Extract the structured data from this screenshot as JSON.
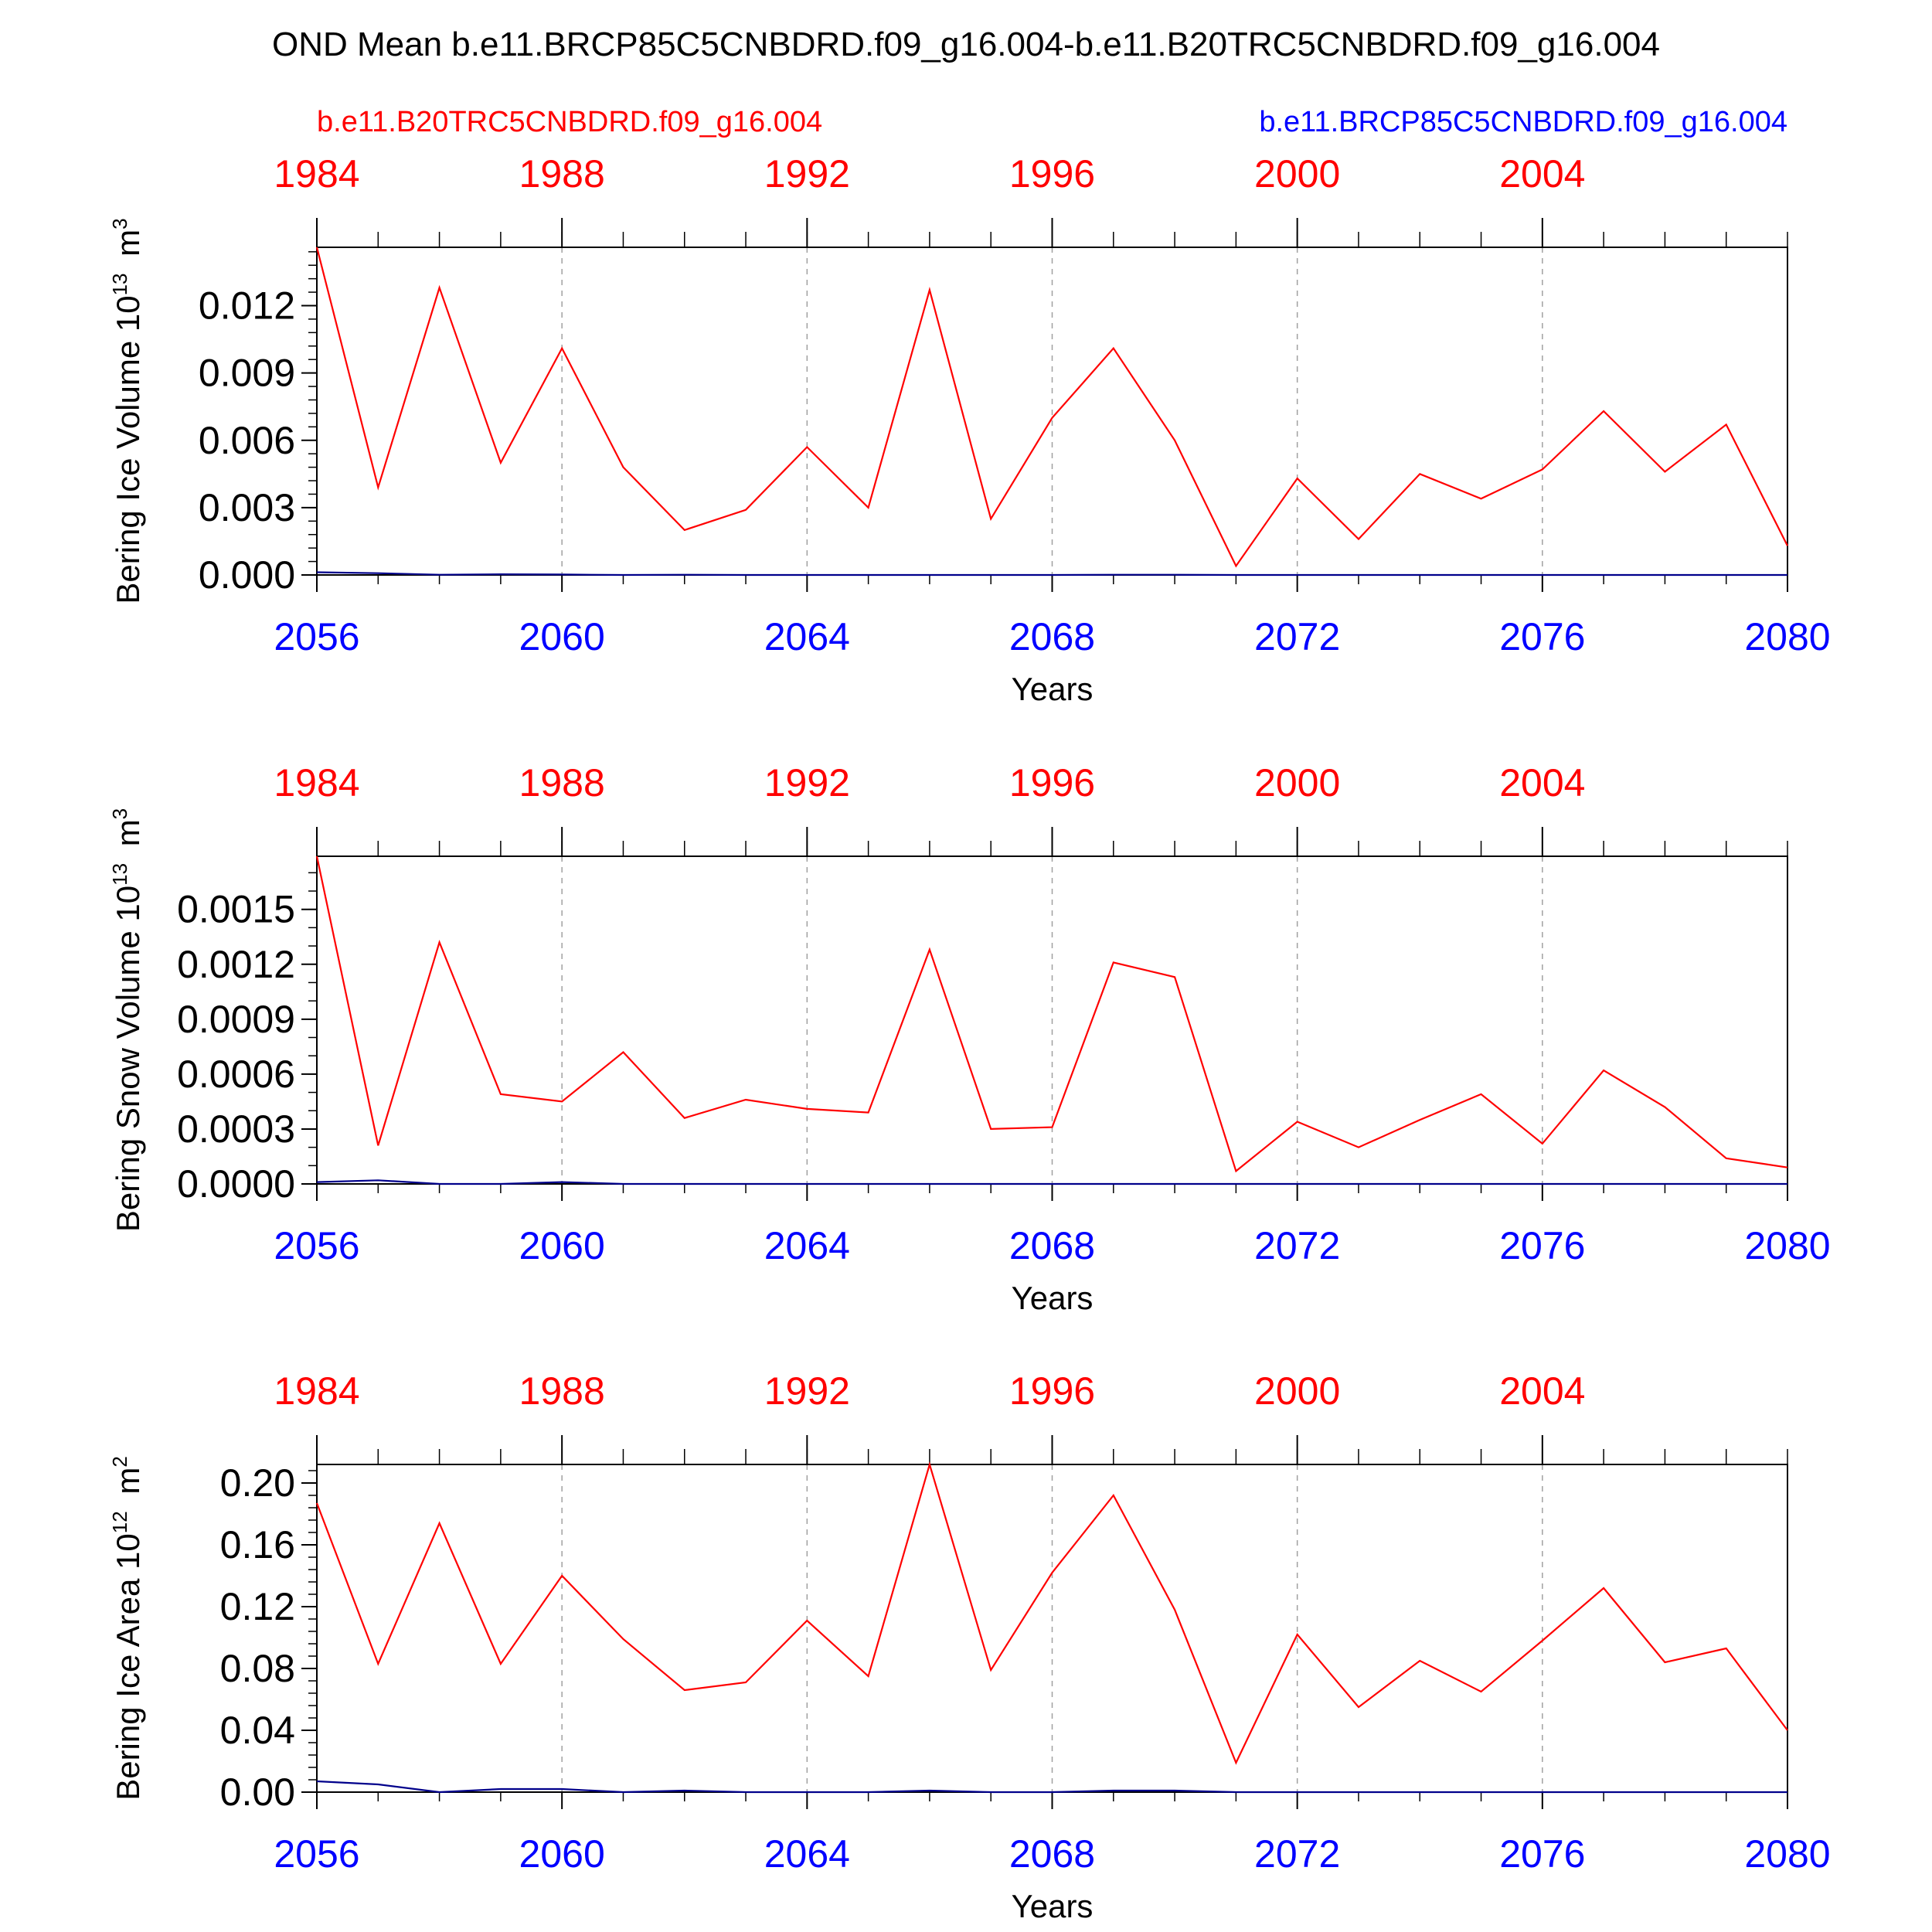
{
  "title": "OND Mean b.e11.BRCP85C5CNBDRD.f09_g16.004-b.e11.B20TRC5CNBDRD.f09_g16.004",
  "legend": {
    "left_label": "b.e11.B20TRC5CNBDRD.f09_g16.004",
    "right_label": "b.e11.BRCP85C5CNBDRD.f09_g16.004"
  },
  "colors": {
    "control": "#ff0000",
    "future": "#0000ff",
    "future_line": "#00008b",
    "axis": "#000000",
    "grid": "#a0a0a0"
  },
  "chart_data": [
    {
      "type": "line",
      "ylabel_main": "Bering Ice Volume 10",
      "ylabel_exp": "13",
      "ylabel_unit": "m",
      "ylabel_unit_exp": "3",
      "xlabel": "Years",
      "xlim": [
        2056,
        2080
      ],
      "ylim": [
        0,
        0.0146
      ],
      "yticks": [
        0,
        0.003,
        0.006,
        0.009,
        0.012
      ],
      "ytick_labels": [
        "0.000",
        "0.003",
        "0.006",
        "0.009",
        "0.012"
      ],
      "yminor_step": 0.0006,
      "x_bottom_ticks": [
        2056,
        2060,
        2064,
        2068,
        2072,
        2076,
        2080
      ],
      "x_top_ticks": [
        1984,
        1988,
        1992,
        1996,
        2000,
        2004
      ],
      "x": [
        2056,
        2057,
        2058,
        2059,
        2060,
        2061,
        2062,
        2063,
        2064,
        2065,
        2066,
        2067,
        2068,
        2069,
        2070,
        2071,
        2072,
        2073,
        2074,
        2075,
        2076,
        2077,
        2078,
        2079,
        2080
      ],
      "series": [
        {
          "name": "b.e11.B20TRC5CNBDRD.f09_g16.004",
          "color_key": "control",
          "values": [
            0.0146,
            0.0039,
            0.0128,
            0.005,
            0.0101,
            0.0048,
            0.002,
            0.0029,
            0.0057,
            0.003,
            0.0127,
            0.0025,
            0.007,
            0.0101,
            0.006,
            0.0004,
            0.0043,
            0.0016,
            0.0045,
            0.0034,
            0.0047,
            0.0073,
            0.0046,
            0.0067,
            0.0013
          ]
        },
        {
          "name": "b.e11.BRCP85C5CNBDRD.f09_g16.004",
          "color_key": "future_line",
          "values": [
            0.00012,
            8e-05,
            1e-05,
            3e-05,
            2e-05,
            0.0,
            1e-05,
            0.0,
            0.0,
            0.0,
            0.0,
            0.0,
            0.0,
            1e-05,
            1e-05,
            0.0,
            0.0,
            0.0,
            0.0,
            0.0,
            0.0,
            0.0,
            0.0,
            0.0,
            0.0
          ]
        }
      ]
    },
    {
      "type": "line",
      "ylabel_main": "Bering Snow Volume 10",
      "ylabel_exp": "13",
      "ylabel_unit": "m",
      "ylabel_unit_exp": "3",
      "xlabel": "Years",
      "xlim": [
        2056,
        2080
      ],
      "ylim": [
        0,
        0.00179
      ],
      "yticks": [
        0,
        0.0003,
        0.0006,
        0.0009,
        0.0012,
        0.0015
      ],
      "ytick_labels": [
        "0.0000",
        "0.0003",
        "0.0006",
        "0.0009",
        "0.0012",
        "0.0015"
      ],
      "yminor_step": 0.0001,
      "x_bottom_ticks": [
        2056,
        2060,
        2064,
        2068,
        2072,
        2076,
        2080
      ],
      "x_top_ticks": [
        1984,
        1988,
        1992,
        1996,
        2000,
        2004
      ],
      "x": [
        2056,
        2057,
        2058,
        2059,
        2060,
        2061,
        2062,
        2063,
        2064,
        2065,
        2066,
        2067,
        2068,
        2069,
        2070,
        2071,
        2072,
        2073,
        2074,
        2075,
        2076,
        2077,
        2078,
        2079,
        2080
      ],
      "series": [
        {
          "name": "b.e11.B20TRC5CNBDRD.f09_g16.004",
          "color_key": "control",
          "values": [
            0.00179,
            0.00021,
            0.00132,
            0.00049,
            0.00045,
            0.00072,
            0.00036,
            0.00046,
            0.00041,
            0.00039,
            0.00128,
            0.0003,
            0.00031,
            0.00121,
            0.00113,
            7e-05,
            0.00034,
            0.0002,
            0.00035,
            0.00049,
            0.00022,
            0.00062,
            0.00042,
            0.00014,
            9e-05
          ]
        },
        {
          "name": "b.e11.BRCP85C5CNBDRD.f09_g16.004",
          "color_key": "future_line",
          "values": [
            1e-05,
            2e-05,
            0.0,
            0.0,
            1e-05,
            0.0,
            0.0,
            0.0,
            0.0,
            0.0,
            0.0,
            0.0,
            0.0,
            0.0,
            0.0,
            0.0,
            0.0,
            0.0,
            0.0,
            0.0,
            0.0,
            0.0,
            0.0,
            0.0,
            0.0
          ]
        }
      ]
    },
    {
      "type": "line",
      "ylabel_main": "Bering Ice Area 10",
      "ylabel_exp": "12",
      "ylabel_unit": "m",
      "ylabel_unit_exp": "2",
      "xlabel": "Years",
      "xlim": [
        2056,
        2080
      ],
      "ylim": [
        0,
        0.212
      ],
      "yticks": [
        0,
        0.04,
        0.08,
        0.12,
        0.16,
        0.2
      ],
      "ytick_labels": [
        "0.00",
        "0.04",
        "0.08",
        "0.12",
        "0.16",
        "0.20"
      ],
      "yminor_step": 0.008,
      "x_bottom_ticks": [
        2056,
        2060,
        2064,
        2068,
        2072,
        2076,
        2080
      ],
      "x_top_ticks": [
        1984,
        1988,
        1992,
        1996,
        2000,
        2004
      ],
      "x": [
        2056,
        2057,
        2058,
        2059,
        2060,
        2061,
        2062,
        2063,
        2064,
        2065,
        2066,
        2067,
        2068,
        2069,
        2070,
        2071,
        2072,
        2073,
        2074,
        2075,
        2076,
        2077,
        2078,
        2079,
        2080
      ],
      "series": [
        {
          "name": "b.e11.B20TRC5CNBDRD.f09_g16.004",
          "color_key": "control",
          "values": [
            0.187,
            0.083,
            0.174,
            0.083,
            0.14,
            0.099,
            0.066,
            0.071,
            0.111,
            0.075,
            0.212,
            0.079,
            0.142,
            0.192,
            0.118,
            0.019,
            0.102,
            0.055,
            0.085,
            0.065,
            0.098,
            0.132,
            0.084,
            0.093,
            0.04
          ]
        },
        {
          "name": "b.e11.BRCP85C5CNBDRD.f09_g16.004",
          "color_key": "future_line",
          "values": [
            0.007,
            0.005,
            0.0,
            0.002,
            0.002,
            0.0,
            0.001,
            0.0,
            0.0,
            0.0,
            0.001,
            0.0,
            0.0,
            0.001,
            0.001,
            0.0,
            0.0,
            0.0,
            0.0,
            0.0,
            0.0,
            0.0,
            0.0,
            0.0,
            0.0
          ]
        }
      ]
    }
  ]
}
